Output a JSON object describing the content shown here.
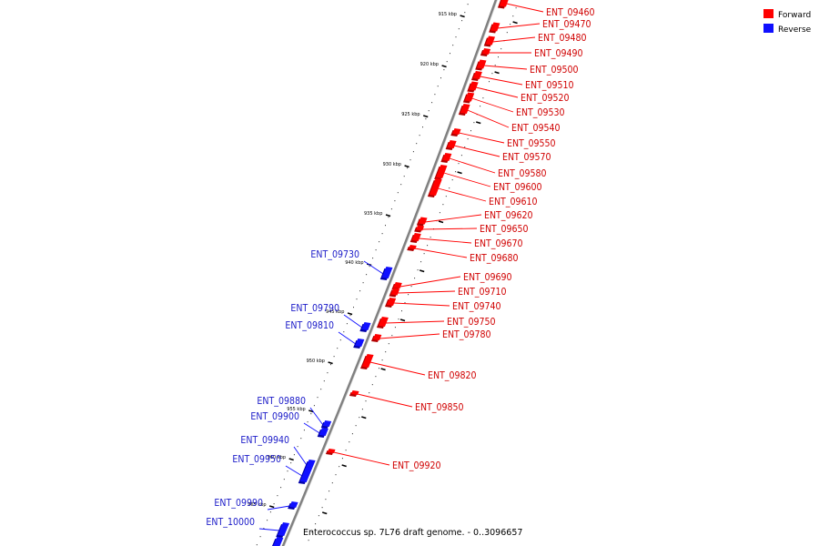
{
  "caption": "Enterococcus sp. 7L76 draft genome. - 0..3096657",
  "legend": {
    "items": [
      {
        "label": "Forward",
        "color": "#ff0000"
      },
      {
        "label": "Reverse",
        "color": "#1010ff"
      }
    ]
  },
  "colors": {
    "forward": "#ff0000",
    "reverse": "#1010ff",
    "backbone": "#808080"
  },
  "ticks": [
    "915 kbp",
    "920 kbp",
    "925 kbp",
    "930 kbp",
    "935 kbp",
    "940 kbp",
    "945 kbp",
    "950 kbp",
    "955 kbp",
    "960 kbp",
    "965 kbp"
  ],
  "forward_genes": [
    "ENT_09460",
    "ENT_09470",
    "ENT_09480",
    "ENT_09490",
    "ENT_09500",
    "ENT_09510",
    "ENT_09520",
    "ENT_09530",
    "ENT_09540",
    "ENT_09550",
    "ENT_09570",
    "ENT_09580",
    "ENT_09600",
    "ENT_09610",
    "ENT_09620",
    "ENT_09650",
    "ENT_09670",
    "ENT_09680",
    "ENT_09690",
    "ENT_09710",
    "ENT_09740",
    "ENT_09750",
    "ENT_09780",
    "ENT_09820",
    "ENT_09850",
    "ENT_09920"
  ],
  "reverse_genes": [
    "ENT_09730",
    "ENT_09790",
    "ENT_09810",
    "ENT_09880",
    "ENT_09900",
    "ENT_09940",
    "ENT_09950",
    "ENT_09990",
    "ENT_10000"
  ]
}
